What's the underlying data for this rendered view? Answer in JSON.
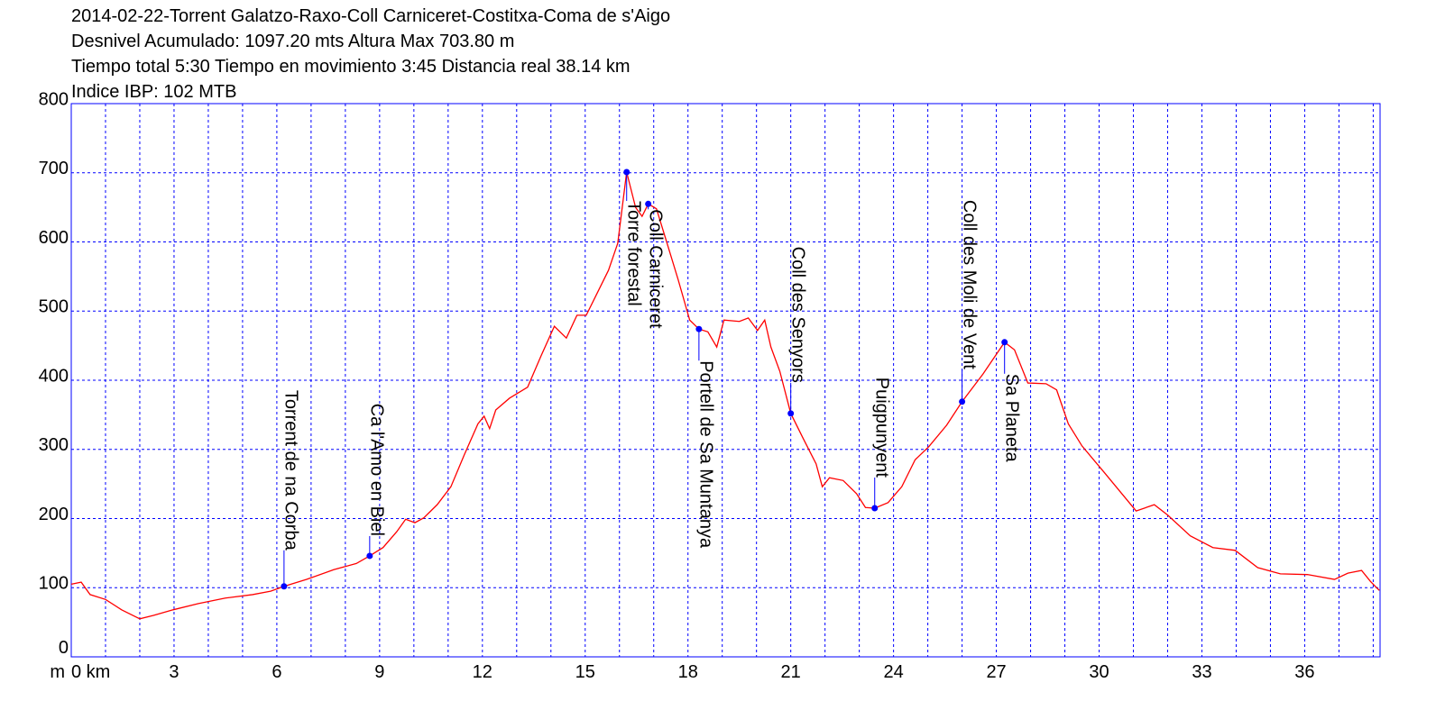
{
  "chart_data": {
    "type": "line",
    "title": "2014-02-22-Torrent Galatzo-Raxo-Coll Carniceret-Costitxa-Coma de s'Aigo",
    "subtitles": [
      "Desnivel Acumulado: 1097.20 mts  Altura Max 703.80 m",
      "Tiempo total 5:30 Tiempo en movimiento 3:45 Distancia real 38.14 km",
      "Indice IBP: 102 MTB"
    ],
    "ylabel": "m",
    "color": "#ff0000",
    "x": [
      0,
      0.29,
      0.55,
      1.0,
      1.47,
      2.0,
      2.4,
      2.97,
      3.71,
      4.5,
      5.29,
      5.82,
      6.21,
      6.87,
      7.66,
      8.32,
      8.71,
      9.1,
      9.5,
      9.76,
      10.03,
      10.29,
      10.68,
      11.08,
      11.47,
      11.87,
      12.05,
      12.21,
      12.39,
      12.79,
      13.32,
      13.71,
      14.1,
      14.45,
      14.76,
      15.03,
      15.29,
      15.68,
      15.95,
      16.21,
      16.47,
      16.66,
      16.84,
      17.08,
      17.39,
      17.71,
      18.05,
      18.32,
      18.58,
      18.84,
      19.05,
      19.5,
      19.76,
      20.03,
      20.24,
      20.42,
      20.68,
      21.0,
      21.34,
      21.74,
      21.92,
      22.13,
      22.53,
      22.92,
      23.18,
      23.45,
      23.84,
      24.24,
      24.63,
      25.03,
      25.55,
      26.0,
      26.61,
      27.24,
      27.53,
      27.92,
      28.45,
      28.76,
      29.1,
      29.5,
      30.16,
      31.08,
      31.61,
      32.0,
      32.66,
      33.32,
      33.97,
      34.63,
      35.29,
      36.08,
      36.87,
      37.26,
      37.66,
      37.92,
      38.18
    ],
    "values": [
      105,
      108,
      90,
      83,
      68,
      55,
      60,
      68,
      77,
      85,
      90,
      95,
      102,
      112,
      126,
      135,
      146,
      158,
      181,
      199,
      194,
      201,
      220,
      246,
      292,
      337,
      348,
      330,
      357,
      374,
      390,
      435,
      478,
      461,
      494,
      494,
      520,
      559,
      598,
      701,
      650,
      637,
      655,
      648,
      598,
      546,
      487,
      474,
      470,
      448,
      487,
      485,
      490,
      472,
      487,
      448,
      413,
      352,
      318,
      279,
      246,
      259,
      255,
      236,
      216,
      215,
      223,
      246,
      285,
      304,
      335,
      369,
      409,
      455,
      444,
      396,
      395,
      386,
      337,
      305,
      266,
      211,
      220,
      205,
      175,
      158,
      154,
      129,
      120,
      119,
      112,
      121,
      125,
      109,
      96
    ],
    "xlim": [
      0,
      38.2
    ],
    "ylim": [
      0,
      800
    ],
    "xticks": [
      {
        "value": 0,
        "label": "0 km"
      },
      3,
      6,
      9,
      12,
      15,
      18,
      21,
      24,
      27,
      30,
      33,
      36
    ],
    "x_grid": [
      1,
      2,
      3,
      4,
      5,
      6,
      7,
      8,
      9,
      10,
      11,
      12,
      13,
      14,
      15,
      16,
      17,
      18,
      19,
      20,
      21,
      22,
      23,
      24,
      25,
      26,
      27,
      28,
      29,
      30,
      31,
      32,
      33,
      34,
      35,
      36,
      37,
      38
    ],
    "yticks": [
      0,
      100,
      200,
      300,
      400,
      500,
      600,
      700,
      800
    ],
    "grid": true,
    "annotations": [
      {
        "label": "Torrent de na Corba",
        "x": 6.21,
        "y": 102
      },
      {
        "label": "Ca l'Amo en Biel",
        "x": 8.71,
        "y": 146
      },
      {
        "label": "Torre forestal",
        "x": 16.21,
        "y": 701
      },
      {
        "label": "Coll Carniceret",
        "x": 16.84,
        "y": 655
      },
      {
        "label": "Portell de Sa Muntanya",
        "x": 18.32,
        "y": 474
      },
      {
        "label": "Coll des Senyors",
        "x": 21.0,
        "y": 352
      },
      {
        "label": "Puigpunyent",
        "x": 23.45,
        "y": 215
      },
      {
        "label": "Coll des Moli de Vent",
        "x": 26.0,
        "y": 369
      },
      {
        "label": "Sa Planeta",
        "x": 27.24,
        "y": 455
      }
    ]
  }
}
